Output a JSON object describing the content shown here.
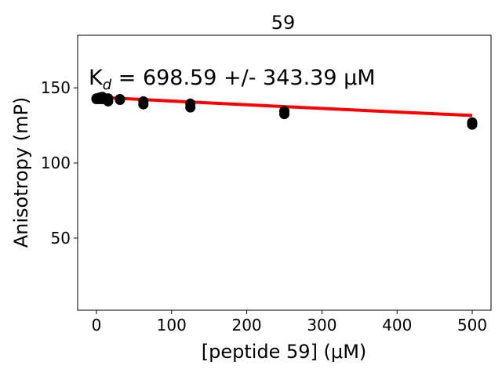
{
  "chart_data": {
    "type": "scatter",
    "title": "59",
    "xlabel": "[peptide 59] (μM)",
    "ylabel": "Anisotropy (mP)",
    "xlim": [
      -25,
      525
    ],
    "ylim": [
      2,
      185
    ],
    "xticks": [
      0,
      100,
      200,
      300,
      400,
      500
    ],
    "yticks": [
      50,
      100,
      150
    ],
    "annotation": {
      "prefix": "K",
      "subscript": "d",
      "text": " = 698.59 +/- 343.39 μM"
    },
    "series": [
      {
        "kind": "points",
        "color": "#000000",
        "points": [
          [
            0,
            142.5
          ],
          [
            0,
            143
          ],
          [
            3.9,
            142.5
          ],
          [
            3.9,
            143.5
          ],
          [
            7.8,
            144
          ],
          [
            7.8,
            142.5
          ],
          [
            15.6,
            143
          ],
          [
            15.6,
            141
          ],
          [
            31.25,
            142.5
          ],
          [
            31.25,
            142
          ],
          [
            62.5,
            141
          ],
          [
            62.5,
            139
          ],
          [
            125,
            139.5
          ],
          [
            125,
            137
          ],
          [
            250,
            134.5
          ],
          [
            250,
            132.5
          ],
          [
            500,
            127
          ],
          [
            500,
            125.5
          ]
        ]
      },
      {
        "kind": "fit",
        "color": "#ff0000",
        "x": [
          0,
          62.5,
          125,
          250,
          375,
          500
        ],
        "y": [
          143.8,
          142.2,
          140.6,
          137.5,
          134.5,
          131.6
        ]
      }
    ]
  }
}
